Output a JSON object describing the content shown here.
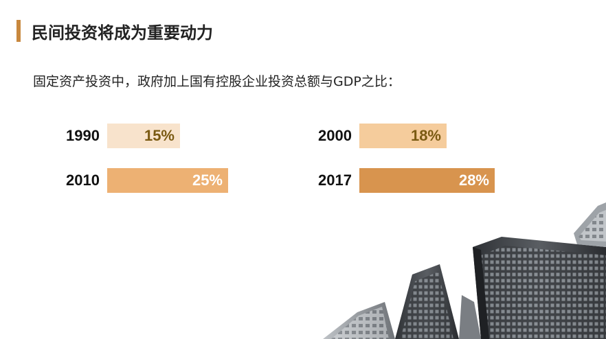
{
  "title": "民间投资将成为重要动力",
  "subtitle": "固定资产投资中，政府加上国有控股企业投资总额与GDP之比：",
  "items": [
    {
      "year": "1990",
      "value": "15%",
      "pct": 15,
      "color": "#f8e3cc",
      "text_color": "#7a5a12"
    },
    {
      "year": "2000",
      "value": "18%",
      "pct": 18,
      "color": "#f5cc9c",
      "text_color": "#7a5a12"
    },
    {
      "year": "2010",
      "value": "25%",
      "pct": 25,
      "color": "#edb173",
      "text_color": "#ffffff"
    },
    {
      "year": "2017",
      "value": "28%",
      "pct": 28,
      "color": "#d8944e",
      "text_color": "#ffffff"
    }
  ],
  "background_image": "city-skyscrapers"
}
